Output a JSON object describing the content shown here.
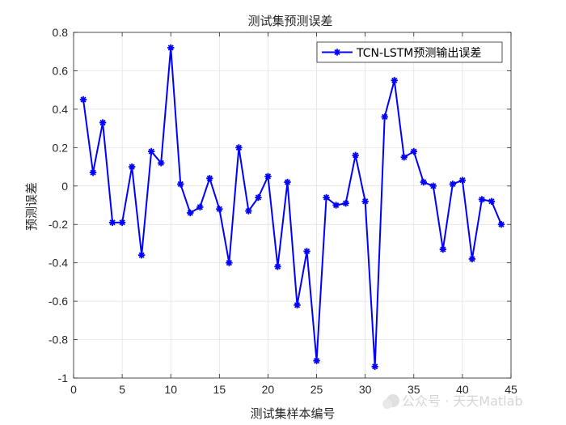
{
  "chart_data": {
    "type": "line",
    "title": "测试集预测误差",
    "xlabel": "测试集样本编号",
    "ylabel": "预测误差",
    "xlim": [
      0,
      45
    ],
    "ylim": [
      -1,
      0.8
    ],
    "xticks": [
      0,
      5,
      10,
      15,
      20,
      25,
      30,
      35,
      40,
      45
    ],
    "yticks": [
      0.8,
      0.6,
      0.4,
      0.2,
      0,
      -0.2,
      -0.4,
      -0.6,
      -0.8,
      -1
    ],
    "xtick_labels": [
      "0",
      "5",
      "10",
      "15",
      "20",
      "25",
      "30",
      "35",
      "40",
      "45"
    ],
    "ytick_labels": [
      "0.8",
      "0.6",
      "0.4",
      "0.2",
      "0",
      "-0.2",
      "-0.4",
      "-0.6",
      "-0.8",
      "-1"
    ],
    "grid": true,
    "legend_position": "top-right",
    "series": [
      {
        "name": "TCN-LSTM预测输出误差",
        "color": "#0000ff",
        "marker": "asterisk",
        "x": [
          1,
          2,
          3,
          4,
          5,
          6,
          7,
          8,
          9,
          10,
          11,
          12,
          13,
          14,
          15,
          16,
          17,
          18,
          19,
          20,
          21,
          22,
          23,
          24,
          25,
          26,
          27,
          28,
          29,
          30,
          31,
          32,
          33,
          34,
          35,
          36,
          37,
          38,
          39,
          40,
          41,
          42,
          43,
          44
        ],
        "values": [
          0.45,
          0.07,
          0.33,
          -0.19,
          -0.19,
          0.1,
          -0.36,
          0.18,
          0.12,
          0.72,
          0.01,
          -0.14,
          -0.11,
          0.04,
          -0.12,
          -0.4,
          0.2,
          -0.13,
          -0.06,
          0.05,
          -0.42,
          0.02,
          -0.62,
          -0.34,
          -0.91,
          -0.06,
          -0.1,
          -0.09,
          0.16,
          -0.08,
          -0.94,
          0.36,
          0.55,
          0.15,
          0.18,
          0.02,
          0.0,
          -0.33,
          0.01,
          0.03,
          -0.38,
          -0.07,
          -0.08,
          -0.2
        ]
      }
    ]
  },
  "watermark": "公众号 · 天天Matlab"
}
